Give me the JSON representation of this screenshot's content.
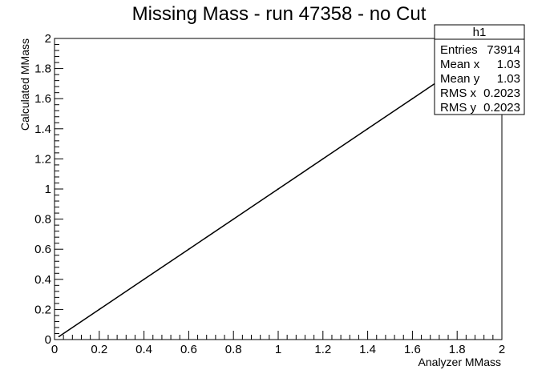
{
  "chart_data": {
    "type": "scatter",
    "title": "Missing Mass - run 47358 - no Cut",
    "xlabel": "Analyzer MMass",
    "ylabel": "Calculated MMass",
    "xlim": [
      0,
      2
    ],
    "ylim": [
      0,
      2
    ],
    "x_ticks": [
      "0",
      "0.2",
      "0.4",
      "0.6",
      "0.8",
      "1",
      "1.2",
      "1.4",
      "1.6",
      "1.8",
      "2"
    ],
    "y_ticks": [
      "0",
      "0.2",
      "0.4",
      "0.6",
      "0.8",
      "1",
      "1.2",
      "1.4",
      "1.6",
      "1.8",
      "2"
    ],
    "grid": false,
    "series": [
      {
        "x": [
          0.02,
          0.2,
          0.4,
          0.6,
          0.8,
          1.0,
          1.2,
          1.4,
          1.6,
          1.7,
          1.8,
          1.9,
          2.0
        ],
        "y": [
          0.02,
          0.2,
          0.4,
          0.6,
          0.8,
          1.0,
          1.2,
          1.4,
          1.6,
          1.7,
          1.8,
          1.9,
          2.0
        ]
      }
    ],
    "stats_box": {
      "title": "h1",
      "position": "top-right",
      "rows": [
        {
          "label": "Entries",
          "value": "73914"
        },
        {
          "label": "Mean x",
          "value": "1.03"
        },
        {
          "label": "Mean y",
          "value": "1.03"
        },
        {
          "label": "RMS x",
          "value": "0.2023"
        },
        {
          "label": "RMS y",
          "value": "0.2023"
        }
      ]
    }
  }
}
